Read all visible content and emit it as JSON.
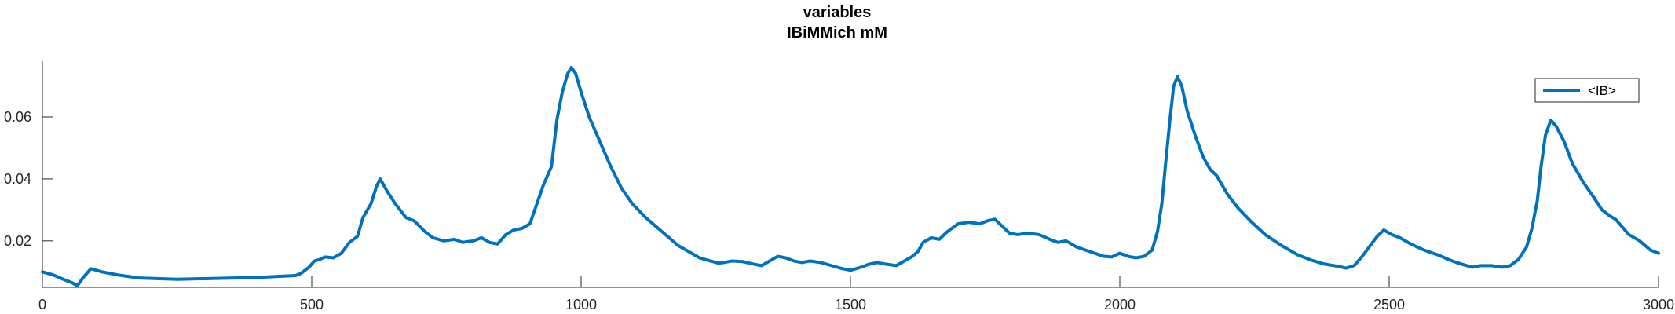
{
  "chart_data": {
    "type": "line",
    "title": "variables",
    "subtitle": "IBiMMich mM",
    "xlabel": "",
    "ylabel": "",
    "xlim": [
      0,
      3000
    ],
    "ylim": [
      0.005,
      0.078
    ],
    "x_ticks": [
      0,
      500,
      1000,
      1500,
      2000,
      2500,
      3000
    ],
    "x_tick_labels": [
      "0",
      "500",
      "1000",
      "1500",
      "2000",
      "2500",
      "3000"
    ],
    "y_ticks": [
      0.02,
      0.04,
      0.06
    ],
    "y_tick_labels": [
      "0.02",
      "0.04",
      "0.06"
    ],
    "grid": false,
    "legend_position": "top-right",
    "series": [
      {
        "name": "<IB>",
        "color": "#0072BD",
        "points": [
          [
            0,
            0.01
          ],
          [
            20,
            0.009
          ],
          [
            40,
            0.0075
          ],
          [
            55,
            0.0065
          ],
          [
            65,
            0.0055
          ],
          [
            75,
            0.008
          ],
          [
            90,
            0.011
          ],
          [
            110,
            0.01
          ],
          [
            140,
            0.009
          ],
          [
            180,
            0.008
          ],
          [
            250,
            0.0076
          ],
          [
            300,
            0.0078
          ],
          [
            400,
            0.0082
          ],
          [
            470,
            0.0088
          ],
          [
            480,
            0.0095
          ],
          [
            495,
            0.0115
          ],
          [
            505,
            0.0135
          ],
          [
            515,
            0.014
          ],
          [
            525,
            0.0148
          ],
          [
            540,
            0.0145
          ],
          [
            555,
            0.016
          ],
          [
            570,
            0.0195
          ],
          [
            585,
            0.0215
          ],
          [
            595,
            0.0275
          ],
          [
            610,
            0.032
          ],
          [
            620,
            0.0375
          ],
          [
            627,
            0.04
          ],
          [
            640,
            0.036
          ],
          [
            655,
            0.032
          ],
          [
            675,
            0.0275
          ],
          [
            690,
            0.0265
          ],
          [
            710,
            0.023
          ],
          [
            725,
            0.021
          ],
          [
            745,
            0.02
          ],
          [
            765,
            0.0205
          ],
          [
            780,
            0.0195
          ],
          [
            800,
            0.02
          ],
          [
            815,
            0.021
          ],
          [
            830,
            0.0195
          ],
          [
            845,
            0.019
          ],
          [
            860,
            0.022
          ],
          [
            875,
            0.0235
          ],
          [
            890,
            0.024
          ],
          [
            905,
            0.0255
          ],
          [
            918,
            0.032
          ],
          [
            930,
            0.038
          ],
          [
            945,
            0.044
          ],
          [
            955,
            0.059
          ],
          [
            965,
            0.068
          ],
          [
            975,
            0.074
          ],
          [
            982,
            0.076
          ],
          [
            990,
            0.074
          ],
          [
            1000,
            0.068
          ],
          [
            1015,
            0.06
          ],
          [
            1035,
            0.052
          ],
          [
            1055,
            0.044
          ],
          [
            1075,
            0.037
          ],
          [
            1095,
            0.032
          ],
          [
            1120,
            0.0275
          ],
          [
            1150,
            0.023
          ],
          [
            1180,
            0.0185
          ],
          [
            1200,
            0.0165
          ],
          [
            1220,
            0.0145
          ],
          [
            1240,
            0.0135
          ],
          [
            1255,
            0.0128
          ],
          [
            1265,
            0.013
          ],
          [
            1280,
            0.0135
          ],
          [
            1300,
            0.0133
          ],
          [
            1320,
            0.0125
          ],
          [
            1335,
            0.012
          ],
          [
            1350,
            0.0135
          ],
          [
            1365,
            0.015
          ],
          [
            1380,
            0.0145
          ],
          [
            1395,
            0.0135
          ],
          [
            1410,
            0.013
          ],
          [
            1425,
            0.0135
          ],
          [
            1445,
            0.013
          ],
          [
            1465,
            0.012
          ],
          [
            1485,
            0.011
          ],
          [
            1500,
            0.0105
          ],
          [
            1520,
            0.0115
          ],
          [
            1535,
            0.0125
          ],
          [
            1550,
            0.013
          ],
          [
            1565,
            0.0125
          ],
          [
            1585,
            0.012
          ],
          [
            1600,
            0.0135
          ],
          [
            1615,
            0.015
          ],
          [
            1625,
            0.0165
          ],
          [
            1635,
            0.0195
          ],
          [
            1650,
            0.021
          ],
          [
            1665,
            0.0205
          ],
          [
            1680,
            0.023
          ],
          [
            1700,
            0.0255
          ],
          [
            1720,
            0.026
          ],
          [
            1740,
            0.0255
          ],
          [
            1755,
            0.0265
          ],
          [
            1768,
            0.027
          ],
          [
            1780,
            0.025
          ],
          [
            1795,
            0.0225
          ],
          [
            1810,
            0.022
          ],
          [
            1830,
            0.0225
          ],
          [
            1850,
            0.022
          ],
          [
            1870,
            0.0205
          ],
          [
            1885,
            0.0195
          ],
          [
            1900,
            0.02
          ],
          [
            1920,
            0.018
          ],
          [
            1945,
            0.0165
          ],
          [
            1970,
            0.015
          ],
          [
            1985,
            0.0148
          ],
          [
            2000,
            0.016
          ],
          [
            2015,
            0.015
          ],
          [
            2030,
            0.0145
          ],
          [
            2045,
            0.015
          ],
          [
            2060,
            0.017
          ],
          [
            2070,
            0.023
          ],
          [
            2078,
            0.032
          ],
          [
            2085,
            0.045
          ],
          [
            2093,
            0.059
          ],
          [
            2100,
            0.07
          ],
          [
            2107,
            0.073
          ],
          [
            2115,
            0.07
          ],
          [
            2125,
            0.062
          ],
          [
            2140,
            0.054
          ],
          [
            2155,
            0.047
          ],
          [
            2168,
            0.043
          ],
          [
            2180,
            0.041
          ],
          [
            2200,
            0.035
          ],
          [
            2220,
            0.0305
          ],
          [
            2245,
            0.026
          ],
          [
            2270,
            0.022
          ],
          [
            2300,
            0.0185
          ],
          [
            2330,
            0.0155
          ],
          [
            2355,
            0.0138
          ],
          [
            2380,
            0.0125
          ],
          [
            2405,
            0.0118
          ],
          [
            2420,
            0.0112
          ],
          [
            2435,
            0.012
          ],
          [
            2450,
            0.015
          ],
          [
            2465,
            0.0185
          ],
          [
            2478,
            0.0215
          ],
          [
            2490,
            0.0235
          ],
          [
            2505,
            0.022
          ],
          [
            2520,
            0.021
          ],
          [
            2540,
            0.019
          ],
          [
            2565,
            0.017
          ],
          [
            2590,
            0.0155
          ],
          [
            2610,
            0.014
          ],
          [
            2625,
            0.013
          ],
          [
            2640,
            0.0122
          ],
          [
            2655,
            0.0115
          ],
          [
            2670,
            0.012
          ],
          [
            2690,
            0.012
          ],
          [
            2710,
            0.0115
          ],
          [
            2725,
            0.012
          ],
          [
            2740,
            0.014
          ],
          [
            2755,
            0.018
          ],
          [
            2765,
            0.024
          ],
          [
            2775,
            0.033
          ],
          [
            2782,
            0.044
          ],
          [
            2790,
            0.054
          ],
          [
            2800,
            0.059
          ],
          [
            2810,
            0.057
          ],
          [
            2825,
            0.052
          ],
          [
            2840,
            0.045
          ],
          [
            2860,
            0.039
          ],
          [
            2880,
            0.034
          ],
          [
            2895,
            0.03
          ],
          [
            2910,
            0.028
          ],
          [
            2920,
            0.027
          ],
          [
            2930,
            0.025
          ],
          [
            2945,
            0.022
          ],
          [
            2965,
            0.02
          ],
          [
            2985,
            0.017
          ],
          [
            3000,
            0.016
          ]
        ]
      }
    ]
  }
}
